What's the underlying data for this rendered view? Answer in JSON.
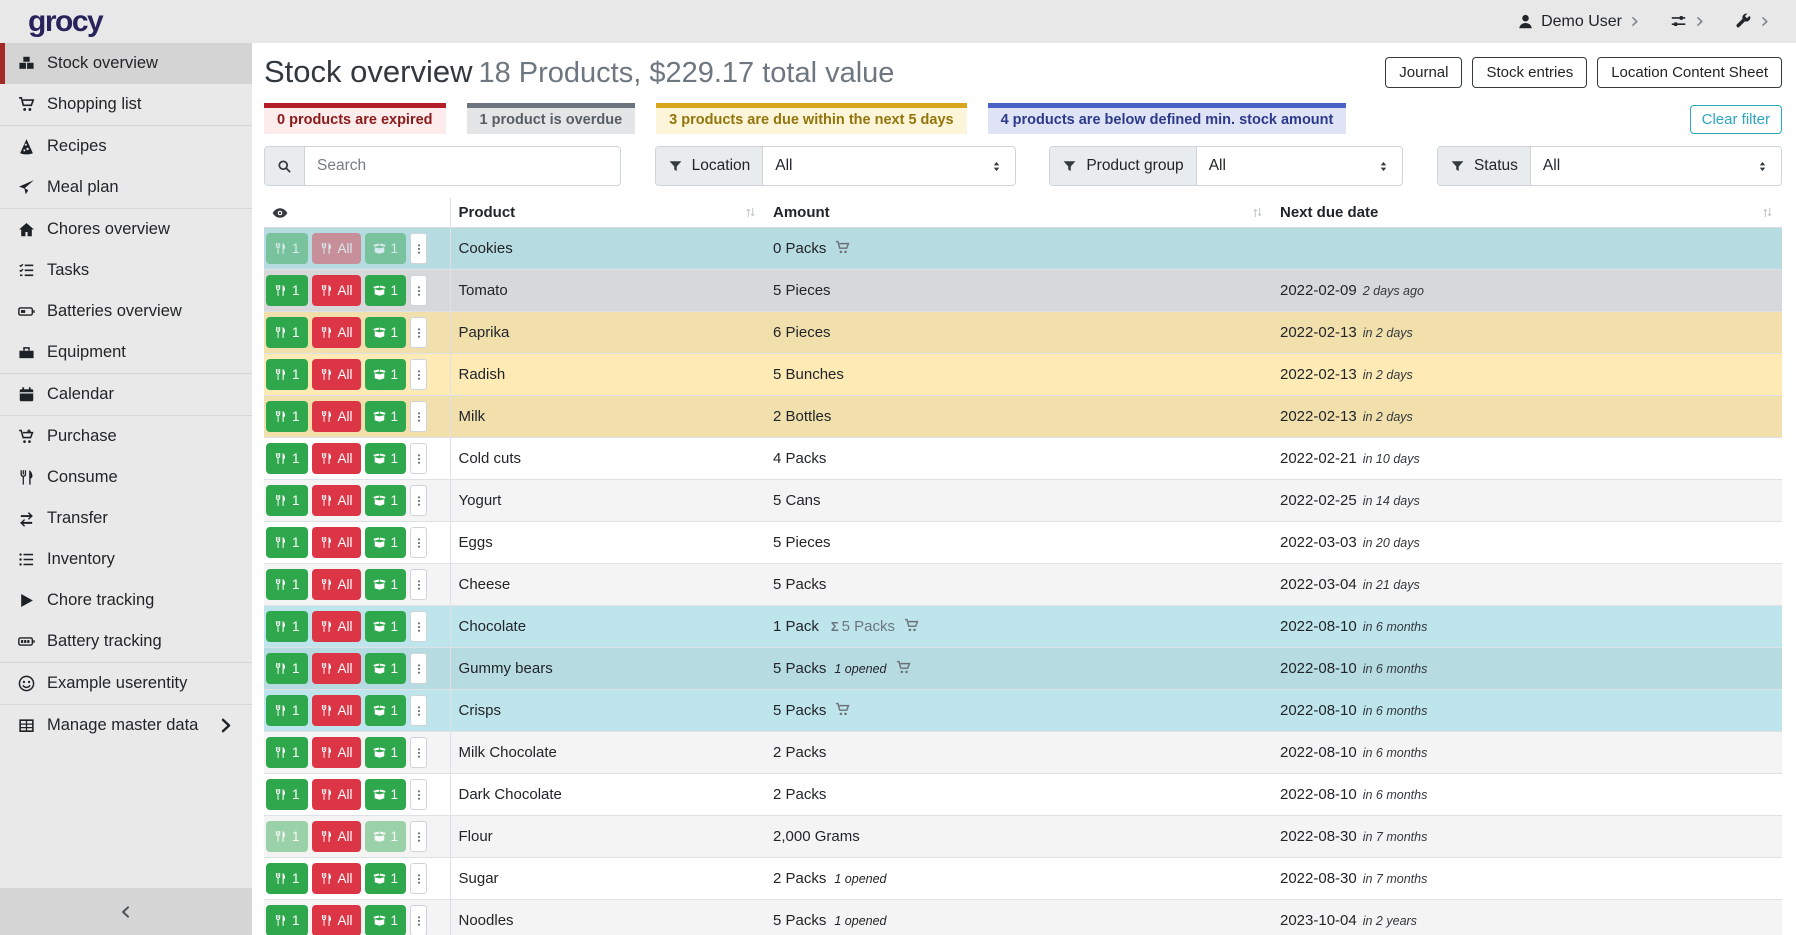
{
  "navbar": {
    "brand": "grocy",
    "user": {
      "label": "Demo User"
    }
  },
  "sidebar": {
    "groups": [
      [
        {
          "label": "Stock overview",
          "icon": "boxes",
          "active": true
        },
        {
          "label": "Shopping list",
          "icon": "shopping-cart"
        }
      ],
      [
        {
          "label": "Recipes",
          "icon": "pizza-slice"
        },
        {
          "label": "Meal plan",
          "icon": "paper-plane"
        }
      ],
      [
        {
          "label": "Chores overview",
          "icon": "home"
        },
        {
          "label": "Tasks",
          "icon": "tasks"
        },
        {
          "label": "Batteries overview",
          "icon": "battery-half"
        },
        {
          "label": "Equipment",
          "icon": "toolbox"
        }
      ],
      [
        {
          "label": "Calendar",
          "icon": "calendar"
        }
      ],
      [
        {
          "label": "Purchase",
          "icon": "cart-plus"
        },
        {
          "label": "Consume",
          "icon": "utensils"
        },
        {
          "label": "Transfer",
          "icon": "exchange"
        },
        {
          "label": "Inventory",
          "icon": "list"
        },
        {
          "label": "Chore tracking",
          "icon": "play"
        },
        {
          "label": "Battery tracking",
          "icon": "battery-full"
        }
      ],
      [
        {
          "label": "Example userentity",
          "icon": "smiley"
        }
      ],
      [
        {
          "label": "Manage master data",
          "icon": "table-grid",
          "chevron": true
        }
      ]
    ]
  },
  "page": {
    "title": "Stock overview",
    "subtitle": "18 Products, $229.17 total value",
    "actions": [
      "Journal",
      "Stock entries",
      "Location Content Sheet"
    ]
  },
  "chips": [
    {
      "type": "expired",
      "label": "0 products are expired"
    },
    {
      "type": "overdue",
      "label": "1 product is overdue"
    },
    {
      "type": "duesoon",
      "label": "3 products are due within the next 5 days"
    },
    {
      "type": "belowmin",
      "label": "4 products are below defined min. stock amount"
    }
  ],
  "clear_filter_label": "Clear filter",
  "filters": {
    "search_placeholder": "Search",
    "location": {
      "label": "Location",
      "value": "All"
    },
    "product_group": {
      "label": "Product group",
      "value": "All"
    },
    "status": {
      "label": "Status",
      "value": "All"
    }
  },
  "table": {
    "columns": [
      "Product",
      "Amount",
      "Next due date"
    ],
    "row_buttons": {
      "consume_one": "1",
      "consume_all": "All",
      "open_one": "1"
    },
    "rows": [
      {
        "product": "Cookies",
        "amount": "0 Packs",
        "amount_sum": "",
        "opened": "",
        "cart": true,
        "due_date": "",
        "due_relative": "",
        "state": "belowmin",
        "disabled": [
          "consume1",
          "consumeall",
          "open1"
        ]
      },
      {
        "product": "Tomato",
        "amount": "5 Pieces",
        "amount_sum": "",
        "opened": "",
        "cart": false,
        "due_date": "2022-02-09",
        "due_relative": "2 days ago",
        "state": "overdue",
        "disabled": []
      },
      {
        "product": "Paprika",
        "amount": "6 Pieces",
        "amount_sum": "",
        "opened": "",
        "cart": false,
        "due_date": "2022-02-13",
        "due_relative": "in 2 days",
        "state": "duesoon",
        "disabled": []
      },
      {
        "product": "Radish",
        "amount": "5 Bunches",
        "amount_sum": "",
        "opened": "",
        "cart": false,
        "due_date": "2022-02-13",
        "due_relative": "in 2 days",
        "state": "duesoon",
        "disabled": []
      },
      {
        "product": "Milk",
        "amount": "2 Bottles",
        "amount_sum": "",
        "opened": "",
        "cart": false,
        "due_date": "2022-02-13",
        "due_relative": "in 2 days",
        "state": "duesoon",
        "disabled": []
      },
      {
        "product": "Cold cuts",
        "amount": "4 Packs",
        "amount_sum": "",
        "opened": "",
        "cart": false,
        "due_date": "2022-02-21",
        "due_relative": "in 10 days",
        "state": "none",
        "disabled": []
      },
      {
        "product": "Yogurt",
        "amount": "5 Cans",
        "amount_sum": "",
        "opened": "",
        "cart": false,
        "due_date": "2022-02-25",
        "due_relative": "in 14 days",
        "state": "none",
        "disabled": []
      },
      {
        "product": "Eggs",
        "amount": "5 Pieces",
        "amount_sum": "",
        "opened": "",
        "cart": false,
        "due_date": "2022-03-03",
        "due_relative": "in 20 days",
        "state": "none",
        "disabled": []
      },
      {
        "product": "Cheese",
        "amount": "5 Packs",
        "amount_sum": "",
        "opened": "",
        "cart": false,
        "due_date": "2022-03-04",
        "due_relative": "in 21 days",
        "state": "none",
        "disabled": []
      },
      {
        "product": "Chocolate",
        "amount": "1 Pack",
        "amount_sum": "5 Packs",
        "opened": "",
        "cart": true,
        "due_date": "2022-08-10",
        "due_relative": "in 6 months",
        "state": "belowmin",
        "disabled": []
      },
      {
        "product": "Gummy bears",
        "amount": "5 Packs",
        "amount_sum": "",
        "opened": "1 opened",
        "cart": true,
        "due_date": "2022-08-10",
        "due_relative": "in 6 months",
        "state": "belowmin",
        "disabled": []
      },
      {
        "product": "Crisps",
        "amount": "5 Packs",
        "amount_sum": "",
        "opened": "",
        "cart": true,
        "due_date": "2022-08-10",
        "due_relative": "in 6 months",
        "state": "belowmin",
        "disabled": []
      },
      {
        "product": "Milk Chocolate",
        "amount": "2 Packs",
        "amount_sum": "",
        "opened": "",
        "cart": false,
        "due_date": "2022-08-10",
        "due_relative": "in 6 months",
        "state": "none",
        "disabled": []
      },
      {
        "product": "Dark Chocolate",
        "amount": "2 Packs",
        "amount_sum": "",
        "opened": "",
        "cart": false,
        "due_date": "2022-08-10",
        "due_relative": "in 6 months",
        "state": "none",
        "disabled": []
      },
      {
        "product": "Flour",
        "amount": "2,000 Grams",
        "amount_sum": "",
        "opened": "",
        "cart": false,
        "due_date": "2022-08-30",
        "due_relative": "in 7 months",
        "state": "none",
        "disabled": [
          "consume1",
          "open1"
        ]
      },
      {
        "product": "Sugar",
        "amount": "2 Packs",
        "amount_sum": "",
        "opened": "1 opened",
        "cart": false,
        "due_date": "2022-08-30",
        "due_relative": "in 7 months",
        "state": "none",
        "disabled": []
      },
      {
        "product": "Noodles",
        "amount": "5 Packs",
        "amount_sum": "",
        "opened": "1 opened",
        "cart": false,
        "due_date": "2023-10-04",
        "due_relative": "in 2 years",
        "state": "none",
        "disabled": []
      }
    ]
  },
  "colors": {
    "brand": "#29235c",
    "sidebar_active_accent": "#a32a29",
    "success_button": "#2fa84d",
    "danger_button": "#dc3545",
    "row_below_min": "#bee5eb",
    "row_overdue": "#d6d8d9",
    "row_due_soon": "#fdeab4",
    "clear_filter_accent": "#2aa9bd"
  }
}
